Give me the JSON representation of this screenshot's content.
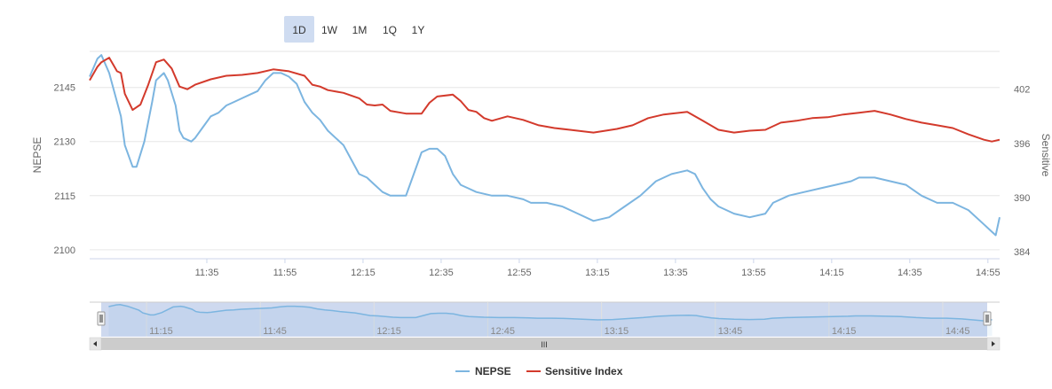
{
  "range_selector": {
    "buttons": [
      "1D",
      "1W",
      "1M",
      "1Q",
      "1Y"
    ],
    "selected": "1D"
  },
  "navigator": {
    "labels": [
      "11:15",
      "11:45",
      "12:15",
      "12:45",
      "13:15",
      "13:45",
      "14:15",
      "14:45"
    ],
    "scroll_grip": "III"
  },
  "colors": {
    "nepse": "#7cb5e0",
    "sensitive": "#d33a2c",
    "selected_bg": "#cfdcf1",
    "nav_mask": "#c6d2ec"
  },
  "chart_data": {
    "type": "line",
    "x_unit": "time (HH:MM)",
    "x_ticks": [
      "11:35",
      "11:55",
      "12:15",
      "12:35",
      "12:55",
      "13:15",
      "13:35",
      "13:55",
      "14:15",
      "14:35",
      "14:55"
    ],
    "x_range": [
      "11:05",
      "14:58"
    ],
    "y_left": {
      "label": "NEPSE",
      "ticks": [
        2100,
        2115,
        2130,
        2145
      ],
      "range": [
        2097.5,
        2155
      ]
    },
    "y_right": {
      "label": "Sensitive",
      "ticks": [
        384,
        390,
        396,
        402
      ],
      "range": [
        383.2,
        406.2
      ]
    },
    "legend": {
      "position": "bottom-center",
      "entries": [
        "NEPSE",
        "Sensitive Index"
      ]
    },
    "grid": true,
    "series": [
      {
        "name": "NEPSE",
        "axis": "left",
        "points": [
          [
            "11:05",
            2148
          ],
          [
            "11:07",
            2153
          ],
          [
            "11:08",
            2154
          ],
          [
            "11:10",
            2149
          ],
          [
            "11:12",
            2141
          ],
          [
            "11:13",
            2137
          ],
          [
            "11:14",
            2129
          ],
          [
            "11:16",
            2123
          ],
          [
            "11:17",
            2123
          ],
          [
            "11:19",
            2130
          ],
          [
            "11:21",
            2141
          ],
          [
            "11:22",
            2147
          ],
          [
            "11:24",
            2149
          ],
          [
            "11:25",
            2147
          ],
          [
            "11:27",
            2140
          ],
          [
            "11:28",
            2133
          ],
          [
            "11:29",
            2131
          ],
          [
            "11:31",
            2130
          ],
          [
            "11:32",
            2131
          ],
          [
            "11:34",
            2134
          ],
          [
            "11:36",
            2137
          ],
          [
            "11:38",
            2138
          ],
          [
            "11:40",
            2140
          ],
          [
            "11:42",
            2141
          ],
          [
            "11:44",
            2142
          ],
          [
            "11:46",
            2143
          ],
          [
            "11:48",
            2144
          ],
          [
            "11:50",
            2147
          ],
          [
            "11:52",
            2149
          ],
          [
            "11:54",
            2149
          ],
          [
            "11:56",
            2148
          ],
          [
            "11:58",
            2146
          ],
          [
            "12:00",
            2141
          ],
          [
            "12:02",
            2138
          ],
          [
            "12:04",
            2136
          ],
          [
            "12:06",
            2133
          ],
          [
            "12:08",
            2131
          ],
          [
            "12:10",
            2129
          ],
          [
            "12:12",
            2125
          ],
          [
            "12:14",
            2121
          ],
          [
            "12:16",
            2120
          ],
          [
            "12:18",
            2118
          ],
          [
            "12:20",
            2116
          ],
          [
            "12:22",
            2115
          ],
          [
            "12:24",
            2115
          ],
          [
            "12:26",
            2115
          ],
          [
            "12:28",
            2121
          ],
          [
            "12:30",
            2127
          ],
          [
            "12:32",
            2128
          ],
          [
            "12:34",
            2128
          ],
          [
            "12:36",
            2126
          ],
          [
            "12:38",
            2121
          ],
          [
            "12:40",
            2118
          ],
          [
            "12:42",
            2117
          ],
          [
            "12:44",
            2116
          ],
          [
            "12:48",
            2115
          ],
          [
            "12:52",
            2115
          ],
          [
            "12:56",
            2114
          ],
          [
            "12:58",
            2113
          ],
          [
            "13:02",
            2113
          ],
          [
            "13:06",
            2112
          ],
          [
            "13:10",
            2110
          ],
          [
            "13:14",
            2108
          ],
          [
            "13:18",
            2109
          ],
          [
            "13:22",
            2112
          ],
          [
            "13:26",
            2115
          ],
          [
            "13:30",
            2119
          ],
          [
            "13:34",
            2121
          ],
          [
            "13:38",
            2122
          ],
          [
            "13:40",
            2121
          ],
          [
            "13:42",
            2117
          ],
          [
            "13:44",
            2114
          ],
          [
            "13:46",
            2112
          ],
          [
            "13:50",
            2110
          ],
          [
            "13:54",
            2109
          ],
          [
            "13:58",
            2110
          ],
          [
            "14:00",
            2113
          ],
          [
            "14:04",
            2115
          ],
          [
            "14:08",
            2116
          ],
          [
            "14:12",
            2117
          ],
          [
            "14:16",
            2118
          ],
          [
            "14:20",
            2119
          ],
          [
            "14:22",
            2120
          ],
          [
            "14:26",
            2120
          ],
          [
            "14:30",
            2119
          ],
          [
            "14:34",
            2118
          ],
          [
            "14:38",
            2115
          ],
          [
            "14:42",
            2113
          ],
          [
            "14:46",
            2113
          ],
          [
            "14:50",
            2111
          ],
          [
            "14:54",
            2107
          ],
          [
            "14:56",
            2105
          ],
          [
            "14:57",
            2104
          ],
          [
            "14:58",
            2109
          ]
        ]
      },
      {
        "name": "Sensitive Index",
        "axis": "right",
        "points": [
          [
            "11:05",
            403.0
          ],
          [
            "11:07",
            404.5
          ],
          [
            "11:08",
            405.0
          ],
          [
            "11:10",
            405.5
          ],
          [
            "11:12",
            404.0
          ],
          [
            "11:13",
            403.8
          ],
          [
            "11:14",
            401.5
          ],
          [
            "11:16",
            399.7
          ],
          [
            "11:18",
            400.3
          ],
          [
            "11:20",
            402.5
          ],
          [
            "11:22",
            405.0
          ],
          [
            "11:24",
            405.3
          ],
          [
            "11:26",
            404.3
          ],
          [
            "11:28",
            402.3
          ],
          [
            "11:30",
            402.0
          ],
          [
            "11:32",
            402.5
          ],
          [
            "11:36",
            403.1
          ],
          [
            "11:40",
            403.5
          ],
          [
            "11:44",
            403.6
          ],
          [
            "11:48",
            403.8
          ],
          [
            "11:52",
            404.2
          ],
          [
            "11:56",
            404.0
          ],
          [
            "12:00",
            403.5
          ],
          [
            "12:02",
            402.5
          ],
          [
            "12:04",
            402.3
          ],
          [
            "12:06",
            401.9
          ],
          [
            "12:10",
            401.6
          ],
          [
            "12:14",
            401.0
          ],
          [
            "12:16",
            400.3
          ],
          [
            "12:18",
            400.2
          ],
          [
            "12:20",
            400.3
          ],
          [
            "12:22",
            399.6
          ],
          [
            "12:26",
            399.3
          ],
          [
            "12:30",
            399.3
          ],
          [
            "12:32",
            400.5
          ],
          [
            "12:34",
            401.2
          ],
          [
            "12:38",
            401.4
          ],
          [
            "12:40",
            400.7
          ],
          [
            "12:42",
            399.7
          ],
          [
            "12:44",
            399.5
          ],
          [
            "12:46",
            398.8
          ],
          [
            "12:48",
            398.5
          ],
          [
            "12:52",
            399.0
          ],
          [
            "12:56",
            398.6
          ],
          [
            "13:00",
            398.0
          ],
          [
            "13:04",
            397.7
          ],
          [
            "13:08",
            397.5
          ],
          [
            "13:14",
            397.2
          ],
          [
            "13:20",
            397.6
          ],
          [
            "13:24",
            398.0
          ],
          [
            "13:28",
            398.8
          ],
          [
            "13:32",
            399.2
          ],
          [
            "13:38",
            399.5
          ],
          [
            "13:42",
            398.5
          ],
          [
            "13:46",
            397.5
          ],
          [
            "13:50",
            397.2
          ],
          [
            "13:54",
            397.4
          ],
          [
            "13:58",
            397.5
          ],
          [
            "14:02",
            398.3
          ],
          [
            "14:06",
            398.5
          ],
          [
            "14:10",
            398.8
          ],
          [
            "14:14",
            398.9
          ],
          [
            "14:18",
            399.2
          ],
          [
            "14:22",
            399.4
          ],
          [
            "14:26",
            399.6
          ],
          [
            "14:30",
            399.2
          ],
          [
            "14:34",
            398.7
          ],
          [
            "14:38",
            398.3
          ],
          [
            "14:42",
            398.0
          ],
          [
            "14:46",
            397.7
          ],
          [
            "14:50",
            397.0
          ],
          [
            "14:54",
            396.4
          ],
          [
            "14:56",
            396.2
          ],
          [
            "14:58",
            396.4
          ]
        ]
      }
    ]
  }
}
